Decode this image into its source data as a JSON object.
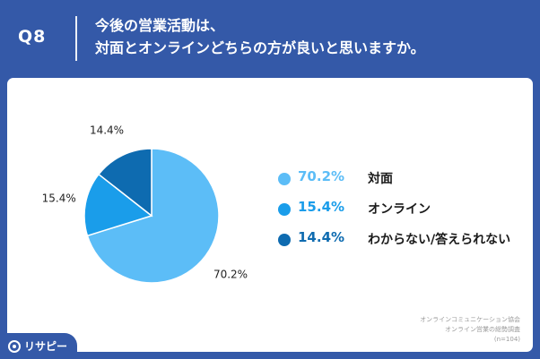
{
  "header": {
    "question_number": "Q8",
    "question_line1": "今後の営業活動は、",
    "question_line2": "対面とオンラインどちらの方が良いと思いますか。"
  },
  "chart_data": {
    "type": "pie",
    "start": "12-o'clock",
    "direction": "clockwise",
    "slices": [
      {
        "label": "対面",
        "value": 70.2,
        "display": "70.2%",
        "color": "#5CBDF7"
      },
      {
        "label": "オンライン",
        "value": 15.4,
        "display": "15.4%",
        "color": "#1A9DEA"
      },
      {
        "label": "わからない/答えられない",
        "value": 14.4,
        "display": "14.4%",
        "color": "#0E6BB0"
      }
    ]
  },
  "source": {
    "line1": "オンラインコミュニケーション協会",
    "line2": "オンライン営業の総勢調査",
    "line3": "(n=104)"
  },
  "brand": {
    "name": "リサピー",
    "icon": "magnifier-icon"
  },
  "colors": {
    "background": "#3459A8",
    "panel": "#FFFFFF"
  }
}
